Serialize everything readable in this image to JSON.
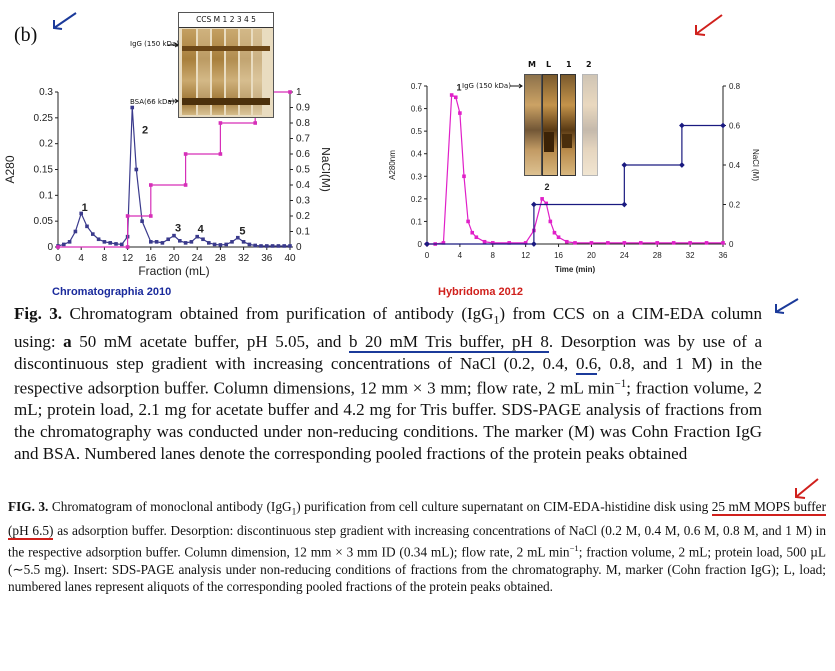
{
  "panel_label": "(b)",
  "sources": {
    "left": "Chromatographia 2010",
    "right": "Hybridoma 2012"
  },
  "chart_data": [
    {
      "type": "line",
      "title": "",
      "xlabel": "Fraction (mL)",
      "ylabel": "A280",
      "y2label": "NaCl(M)",
      "xlim": [
        0,
        40
      ],
      "ylim": [
        0,
        0.3
      ],
      "y2lim": [
        0,
        1
      ],
      "x_ticks": [
        "0",
        "4",
        "8",
        "12",
        "16",
        "20",
        "24",
        "28",
        "32",
        "36",
        "40"
      ],
      "y_ticks": [
        "0",
        "0.05",
        "0.1",
        "0.15",
        "0.2",
        "0.25",
        "0.3"
      ],
      "y2_ticks": [
        "0",
        "0.1",
        "0.2",
        "0.3",
        "0.4",
        "0.5",
        "0.6",
        "0.7",
        "0.8",
        "0.9",
        "1"
      ],
      "series": [
        {
          "name": "A280",
          "color": "#3a3a8c",
          "x": [
            0,
            1,
            2,
            3,
            4,
            5,
            6,
            7,
            8,
            9,
            10,
            11,
            12,
            12.8,
            13.5,
            14.5,
            16,
            17,
            18,
            19,
            20,
            21,
            22,
            23,
            24,
            25,
            26,
            27,
            28,
            29,
            30,
            31,
            32,
            33,
            34,
            35,
            36,
            37,
            38,
            39,
            40
          ],
          "y": [
            0.002,
            0.005,
            0.01,
            0.03,
            0.065,
            0.04,
            0.025,
            0.015,
            0.01,
            0.008,
            0.006,
            0.005,
            0.02,
            0.27,
            0.15,
            0.05,
            0.01,
            0.01,
            0.008,
            0.015,
            0.022,
            0.012,
            0.008,
            0.01,
            0.02,
            0.015,
            0.008,
            0.005,
            0.004,
            0.005,
            0.01,
            0.018,
            0.01,
            0.005,
            0.003,
            0.002,
            0.002,
            0.002,
            0.002,
            0.002,
            0.002
          ]
        },
        {
          "name": "NaCl",
          "color": "#d62fb8",
          "x": [
            0,
            12,
            12,
            16,
            16,
            22,
            22,
            28,
            28,
            34,
            34,
            40
          ],
          "y": [
            0,
            0,
            0.2,
            0.2,
            0.4,
            0.4,
            0.6,
            0.6,
            0.8,
            0.8,
            1,
            1
          ]
        }
      ],
      "peak_labels": [
        {
          "label": "1",
          "x": 4.6,
          "y": 0.07
        },
        {
          "label": "2",
          "x": 15,
          "y": 0.22
        },
        {
          "label": "3",
          "x": 20.7,
          "y": 0.03
        },
        {
          "label": "4",
          "x": 24.6,
          "y": 0.028
        },
        {
          "label": "5",
          "x": 31.8,
          "y": 0.024
        }
      ]
    },
    {
      "type": "line",
      "title": "",
      "xlabel": "Time (min)",
      "ylabel": "A280nm",
      "y2label": "NaCl (M)",
      "xlim": [
        0,
        36
      ],
      "ylim": [
        0,
        0.7
      ],
      "y2lim": [
        0,
        0.8
      ],
      "x_ticks": [
        "0",
        "4",
        "8",
        "12",
        "16",
        "20",
        "24",
        "28",
        "32",
        "36"
      ],
      "y_ticks": [
        "0",
        "0.1",
        "0.2",
        "0.3",
        "0.4",
        "0.5",
        "0.6",
        "0.7"
      ],
      "y2_ticks": [
        "0",
        "0.2",
        "0.4",
        "0.6",
        "0.8"
      ],
      "series": [
        {
          "name": "A280",
          "color": "#e020c8",
          "x": [
            0,
            1,
            2,
            3,
            3.5,
            4,
            4.5,
            5,
            5.5,
            6,
            7,
            8,
            10,
            12,
            13,
            14,
            14.5,
            15,
            15.5,
            16,
            17,
            18,
            20,
            22,
            24,
            26,
            28,
            30,
            32,
            34,
            36
          ],
          "y": [
            0,
            0,
            0.005,
            0.66,
            0.65,
            0.58,
            0.3,
            0.1,
            0.05,
            0.03,
            0.01,
            0.005,
            0.005,
            0.005,
            0.06,
            0.2,
            0.18,
            0.1,
            0.05,
            0.03,
            0.01,
            0.005,
            0.005,
            0.005,
            0.005,
            0.005,
            0.005,
            0.005,
            0.005,
            0.005,
            0.005
          ]
        },
        {
          "name": "NaCl",
          "color": "#1a1a80",
          "x": [
            0,
            13,
            13,
            24,
            24,
            31,
            31,
            36
          ],
          "y": [
            0,
            0,
            0.2,
            0.2,
            0.4,
            0.4,
            0.6,
            0.6
          ]
        }
      ],
      "peak_labels": [
        {
          "label": "1",
          "x": 3.9,
          "y": 0.68
        },
        {
          "label": "2",
          "x": 14.6,
          "y": 0.24
        }
      ]
    }
  ],
  "gel_left": {
    "lanes": "CCS M 1 2 3 4 5",
    "marker_top": "IgG (150 kDa)",
    "marker_bottom": "BSA(66 kDa)"
  },
  "gel_right": {
    "lanes": [
      "M",
      "L",
      "1",
      "2"
    ],
    "marker": "IgG (150 kDa)"
  },
  "caption1": {
    "fig": "Fig. 3.",
    "text1": " Chromatogram obtained from purification of antibody (IgG",
    "sub1": "1",
    "text2": ") from CCS on a CIM-EDA column using: ",
    "a": "a",
    "text3": " 50 mM acetate buffer, pH 5.05, and ",
    "b": "b 20 mM Tris buffer, pH 8",
    "text4": ". Desorption was by use of a discontinuous step gradient with increasing concentrations of NaCl (0.2, 0.4, ",
    "underlined": "0.6",
    "text5": ", 0.8, and 1 M) in the respective adsorption buffer. Column dimensions, 12 mm × 3 mm; flow rate, 2 mL min",
    "sup": "−1",
    "text6": "; fraction volume, 2 mL; protein load, 2.1 mg for acetate buffer and 4.2 mg for Tris buffer. SDS-PAGE analysis of fractions from the chromatography was conducted under non-reducing conditions. The marker (M) was Cohn Fraction IgG and BSA. Numbered lanes denote the corresponding pooled fractions of the protein peaks obtained"
  },
  "caption2": {
    "fig": "FIG. 3.",
    "text1": " Chromatogram of monoclonal antibody (IgG",
    "sub1": "1",
    "text2": ") purification from cell culture supernatant on CIM-EDA-histidine disk using ",
    "underlined": "25 mM MOPS buffer (pH 6.5)",
    "text3": " as adsorption buffer. Desorption: discontinuous step gradient with increasing concentrations of NaCl (0.2 M, 0.4 M, 0.6 M, 0.8 M, and 1 M) in the respective adsorption buffer. Column dimension, 12 mm × 3 mm ID (0.34 mL); flow rate, 2 mL min",
    "sup": "−1",
    "text4": "; fraction volume, 2 mL; protein load, 500 µL (∼5.5 mg). Insert: SDS-PAGE analysis under non-reducing conditions of fractions from the chromatography. M, marker (Cohn fraction IgG); L, load; numbered lanes represent aliquots of the corresponding pooled fractions of the protein peaks obtained."
  },
  "colors": {
    "annotation_blue": "#1b3a9a",
    "annotation_red": "#d0201c"
  }
}
